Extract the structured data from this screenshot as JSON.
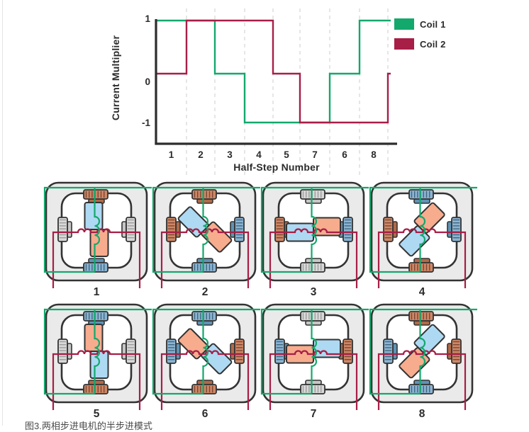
{
  "page": {
    "caption": "图3.两相步进电机的半步进模式"
  },
  "chart": {
    "ylabel": "Current Multiplier",
    "xlabel": "Half-Step Number",
    "y_ticks": [
      "1",
      "0",
      "-1"
    ],
    "x_ticks": [
      "1",
      "2",
      "3",
      "4",
      "5",
      "7",
      "6",
      "8"
    ],
    "legend": [
      {
        "label": "Coil 1",
        "color": "#13a86c"
      },
      {
        "label": "Coil 2",
        "color": "#a71e46"
      }
    ]
  },
  "chart_data": {
    "type": "line",
    "subtype": "step",
    "title": "",
    "xlabel": "Half-Step Number",
    "ylabel": "Current Multiplier",
    "ylim": [
      -1,
      1
    ],
    "grid": "vertical-dashed",
    "legend_position": "top-right",
    "categories": [
      "1",
      "2",
      "3",
      "4",
      "5",
      "7",
      "6",
      "8"
    ],
    "series": [
      {
        "name": "Coil 1",
        "color": "#13a86c",
        "values": [
          1,
          1,
          0,
          -1,
          -1,
          -1,
          0,
          1
        ]
      },
      {
        "name": "Coil 2",
        "color": "#a71e46",
        "values": [
          0,
          1,
          1,
          1,
          0,
          -1,
          -1,
          -1
        ],
        "end_value": 0
      }
    ]
  },
  "diagrams": {
    "palette": {
      "wire_coil1": "#13a86c",
      "wire_coil2": "#a71e46",
      "rotor_blue": "#aed9f3",
      "rotor_orange": "#f7ac8e",
      "stator_fill": "#eaeaea",
      "outline": "#333333",
      "pole_orange": {
        "base": "#cd8766",
        "stripe": "#7d4632",
        "shoe": "#b06a48"
      },
      "pole_blue": {
        "base": "#8cb4d2",
        "stripe": "#3f6780",
        "shoe": "#5f93b5"
      },
      "pole_gray": {
        "base": "#d8d8d8",
        "stripe": "#9b9b9b",
        "shoe": "#c6c6c6"
      }
    },
    "steps": [
      {
        "label": "1",
        "rotor_angle_deg": 0,
        "poles": {
          "top": "orange",
          "right": "gray",
          "bottom": "blue",
          "left": "gray"
        }
      },
      {
        "label": "2",
        "rotor_angle_deg": -45,
        "poles": {
          "top": "orange",
          "right": "blue",
          "bottom": "blue",
          "left": "orange"
        }
      },
      {
        "label": "3",
        "rotor_angle_deg": -90,
        "poles": {
          "top": "gray",
          "right": "blue",
          "bottom": "gray",
          "left": "orange"
        }
      },
      {
        "label": "4",
        "rotor_angle_deg": -135,
        "poles": {
          "top": "blue",
          "right": "blue",
          "bottom": "orange",
          "left": "orange"
        }
      },
      {
        "label": "5",
        "rotor_angle_deg": 180,
        "poles": {
          "top": "blue",
          "right": "gray",
          "bottom": "orange",
          "left": "gray"
        }
      },
      {
        "label": "6",
        "rotor_angle_deg": 135,
        "poles": {
          "top": "blue",
          "right": "orange",
          "bottom": "orange",
          "left": "blue"
        }
      },
      {
        "label": "7",
        "rotor_angle_deg": 90,
        "poles": {
          "top": "gray",
          "right": "orange",
          "bottom": "gray",
          "left": "blue"
        }
      },
      {
        "label": "8",
        "rotor_angle_deg": 45,
        "poles": {
          "top": "orange",
          "right": "orange",
          "bottom": "blue",
          "left": "blue"
        }
      }
    ]
  }
}
